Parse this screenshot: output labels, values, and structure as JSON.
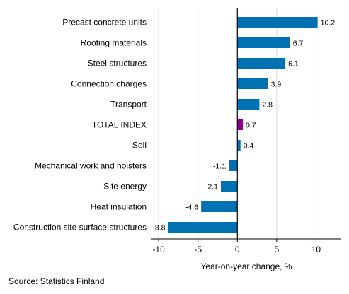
{
  "chart_data": {
    "type": "bar",
    "orientation": "horizontal",
    "categories": [
      "Precast concrete units",
      "Roofing materials",
      "Steel structures",
      "Connection charges",
      "Transport",
      "TOTAL INDEX",
      "Soil",
      "Mechanical work and hoisters",
      "Site energy",
      "Heat insulation",
      "Construction site surface structures"
    ],
    "values": [
      10.2,
      6.7,
      6.1,
      3.9,
      2.8,
      0.7,
      0.4,
      -1.1,
      -2.1,
      -4.6,
      -8.8
    ],
    "value_labels": [
      "10.2",
      "6.7",
      "6.1",
      "3.9",
      "2.8",
      "0.7",
      "0.4",
      "-1.1",
      "-2.1",
      "-4.6",
      "-8.8"
    ],
    "highlight_category": "TOTAL INDEX",
    "xlabel": "Year-on-year change, %",
    "xlim": [
      -11,
      13.2
    ],
    "xticks": [
      -10,
      -5,
      0,
      5,
      10
    ],
    "xtick_labels": [
      "-10",
      "-5",
      "0",
      "5",
      "10"
    ],
    "grid": "vertical",
    "colors": {
      "bar": "#0072b2",
      "highlight": "#8b008b",
      "grid": "#d9d9d9",
      "axis": "#000000"
    }
  },
  "source": "Source: Statistics Finland"
}
